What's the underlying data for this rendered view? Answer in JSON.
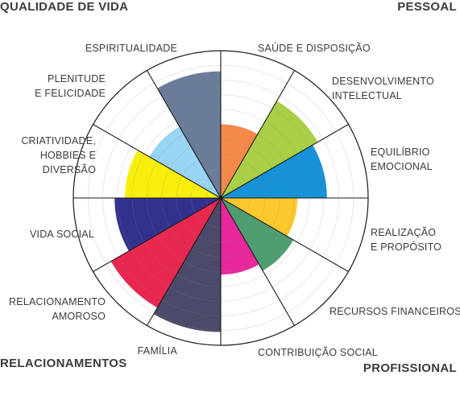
{
  "corners": {
    "top_left": "QUALIDADE DE VIDA",
    "top_right": "PESSOAL",
    "bottom_left": "RELACIONAMENTOS",
    "bottom_right": "PROFISSIONAL"
  },
  "chart_data": {
    "type": "polar-area",
    "rings": 10,
    "segments": [
      {
        "label_lines": [
          "SAÚDE E DISPOSIÇÃO"
        ],
        "value": 5,
        "color": "#f5894a"
      },
      {
        "label_lines": [
          "DESENVOLVIMENTO",
          "INTELECTUAL"
        ],
        "value": 7.6,
        "color": "#a8cf45"
      },
      {
        "label_lines": [
          "EQUILÍBRIO",
          "EMOCIONAL"
        ],
        "value": 7.2,
        "color": "#1592d8"
      },
      {
        "label_lines": [
          "REALIZAÇÃO",
          "E PROPÓSITO"
        ],
        "value": 5.2,
        "color": "#fcc82c"
      },
      {
        "label_lines": [
          "RECURSOS FINANCEIROS"
        ],
        "value": 5.7,
        "color": "#4f9e72"
      },
      {
        "label_lines": [
          "CONTRIBUIÇÃO SOCIAL"
        ],
        "value": 5.2,
        "color": "#e8289c"
      },
      {
        "label_lines": [
          "FAMÍLIA"
        ],
        "value": 9.1,
        "color": "#4b4a6a"
      },
      {
        "label_lines": [
          "RELACIONAMENTO",
          "AMOROSO"
        ],
        "value": 8.6,
        "color": "#e8284f"
      },
      {
        "label_lines": [
          "VIDA SOCIAL"
        ],
        "value": 7.2,
        "color": "#32328e"
      },
      {
        "label_lines": [
          "CRIATIVIDADE,",
          "HOBBIES E",
          "DIVERSÃO"
        ],
        "value": 6.5,
        "color": "#f8ee0c"
      },
      {
        "label_lines": [
          "PLENITUDE",
          "E FELICIDADE"
        ],
        "value": 5.6,
        "color": "#98d5f4"
      },
      {
        "label_lines": [
          "ESPIRITUALIDADE"
        ],
        "value": 8.6,
        "color": "#6a7c98"
      }
    ]
  }
}
